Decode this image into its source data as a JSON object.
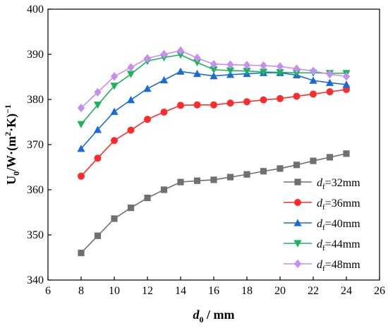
{
  "chart_data": {
    "type": "line",
    "xlabel": {
      "var": "d",
      "sub": "0",
      "unit": " / mm"
    },
    "ylabel": {
      "main": "U",
      "sub": "0",
      "mid": "/W·(m",
      "sup1": "2",
      "mid2": "·K)",
      "sup2": "−1"
    },
    "xlim": [
      6,
      26
    ],
    "ylim": [
      340,
      400
    ],
    "xticks": [
      6,
      8,
      10,
      12,
      14,
      16,
      18,
      20,
      22,
      24,
      26
    ],
    "yticks": [
      340,
      350,
      360,
      370,
      380,
      390,
      400
    ],
    "x": [
      8,
      9,
      10,
      11,
      12,
      13,
      14,
      15,
      16,
      17,
      18,
      19,
      20,
      21,
      22,
      23,
      24
    ],
    "legend_position": "lower-right",
    "grid": false,
    "series": [
      {
        "label_var": "d",
        "label_sub": "f",
        "label_val": "=32mm",
        "color": "#707070",
        "marker": "square",
        "values": [
          346.0,
          349.8,
          353.6,
          356.0,
          358.2,
          360.0,
          361.7,
          362.0,
          362.2,
          362.8,
          363.4,
          364.1,
          364.7,
          365.5,
          366.4,
          367.2,
          368.0
        ]
      },
      {
        "label_var": "d",
        "label_sub": "f",
        "label_val": "=36mm",
        "color": "#ff2a2a",
        "marker": "circle",
        "values": [
          363.0,
          367.0,
          370.9,
          373.2,
          375.6,
          377.2,
          378.7,
          378.8,
          378.8,
          379.2,
          379.5,
          379.9,
          380.2,
          380.7,
          381.2,
          381.7,
          382.2
        ]
      },
      {
        "label_var": "d",
        "label_sub": "f",
        "label_val": "=40mm",
        "color": "#1a6bd6",
        "marker": "triangle-up",
        "values": [
          369.1,
          373.3,
          377.3,
          379.9,
          382.4,
          384.3,
          386.2,
          385.7,
          385.2,
          385.5,
          385.7,
          385.9,
          385.9,
          385.4,
          384.2,
          383.7,
          383.3
        ]
      },
      {
        "label_var": "d",
        "label_sub": "f",
        "label_val": "=44mm",
        "color": "#1db35a",
        "marker": "triangle-down",
        "values": [
          374.5,
          378.8,
          383.0,
          385.6,
          388.5,
          389.3,
          389.9,
          388.2,
          386.6,
          386.4,
          386.3,
          386.1,
          386.0,
          385.9,
          385.9,
          385.8,
          385.8
        ]
      },
      {
        "label_var": "d",
        "label_sub": "f",
        "label_val": "=48mm",
        "color": "#c58ef0",
        "marker": "diamond",
        "values": [
          378.1,
          381.6,
          385.1,
          387.1,
          389.1,
          390.0,
          390.8,
          389.2,
          387.8,
          387.7,
          387.6,
          387.5,
          387.3,
          386.8,
          386.3,
          385.6,
          385.1
        ]
      }
    ]
  }
}
